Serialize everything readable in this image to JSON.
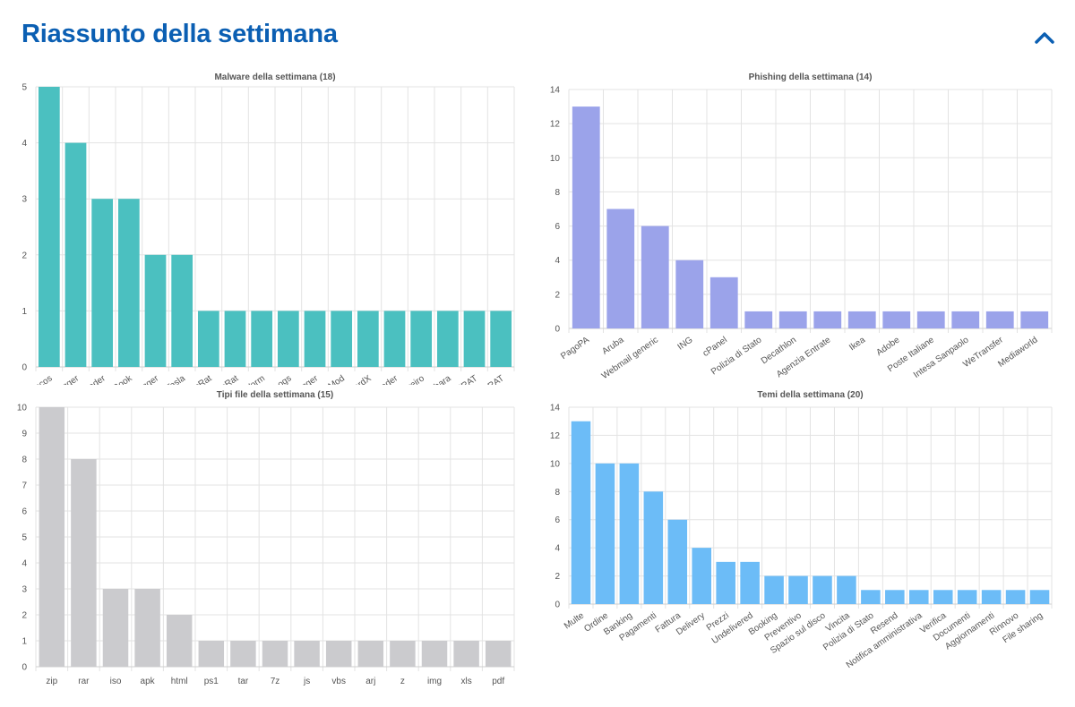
{
  "header": {
    "title": "Riassunto della settimana",
    "toggle_icon": "chevron-up-icon",
    "accent_color": "#0b5fb3"
  },
  "chart_data": [
    {
      "type": "bar",
      "title": "Malware della settimana (18)",
      "categories": [
        "Remcos",
        "VipKeylogger",
        "Modiloader",
        "FormBook",
        "SnakeKeylogger",
        "AgentTesla",
        "AsyncRat",
        "BabylonRat",
        "XWorm",
        "PureLogs",
        "MassLogger",
        "BingoMod",
        "SuperCardX",
        "MintLoader",
        "Grandoreiro",
        "Copybara",
        "njRAT",
        "RevengeRAT"
      ],
      "values": [
        5,
        4,
        3,
        3,
        2,
        2,
        1,
        1,
        1,
        1,
        1,
        1,
        1,
        1,
        1,
        1,
        1,
        1
      ],
      "ylim": [
        0,
        5
      ],
      "yticks": [
        0,
        1,
        2,
        3,
        4,
        5
      ],
      "color": "#4bc0c0",
      "xlabel_rotation": "diagonal",
      "grid": true
    },
    {
      "type": "bar",
      "title": "Phishing della settimana (14)",
      "categories": [
        "PagoPA",
        "Aruba",
        "Webmail generic",
        "ING",
        "cPanel",
        "Polizia di Stato",
        "Decathlon",
        "Agenzia Entrate",
        "Ikea",
        "Adobe",
        "Poste Italiane",
        "Intesa Sanpaolo",
        "WeTransfer",
        "Mediaworld"
      ],
      "values": [
        13,
        7,
        6,
        4,
        3,
        1,
        1,
        1,
        1,
        1,
        1,
        1,
        1,
        1
      ],
      "ylim": [
        0,
        14
      ],
      "yticks": [
        0,
        2,
        4,
        6,
        8,
        10,
        12,
        14
      ],
      "color": "#9ba3ea",
      "xlabel_rotation": "diagonal",
      "grid": true
    },
    {
      "type": "bar",
      "title": "Tipi file della settimana (15)",
      "categories": [
        "zip",
        "rar",
        "iso",
        "apk",
        "html",
        "ps1",
        "tar",
        "7z",
        "js",
        "vbs",
        "arj",
        "z",
        "img",
        "xls",
        "pdf"
      ],
      "values": [
        10,
        8,
        3,
        3,
        2,
        1,
        1,
        1,
        1,
        1,
        1,
        1,
        1,
        1,
        1
      ],
      "ylim": [
        0,
        10
      ],
      "yticks": [
        0,
        1,
        2,
        3,
        4,
        5,
        6,
        7,
        8,
        9,
        10
      ],
      "color": "#cbcbce",
      "xlabel_rotation": "horizontal",
      "grid": true
    },
    {
      "type": "bar",
      "title": "Temi della settimana (20)",
      "categories": [
        "Multe",
        "Ordine",
        "Banking",
        "Pagamenti",
        "Fattura",
        "Delivery",
        "Prezzi",
        "Undelivered",
        "Booking",
        "Preventivo",
        "Spazio sul disco",
        "Vincita",
        "Polizia di Stato",
        "Resend",
        "Notifica amministrativa",
        "Verifica",
        "Documenti",
        "Aggiornamenti",
        "Rinnovo",
        "File sharing"
      ],
      "values": [
        13,
        10,
        10,
        8,
        6,
        4,
        3,
        3,
        2,
        2,
        2,
        2,
        1,
        1,
        1,
        1,
        1,
        1,
        1,
        1
      ],
      "ylim": [
        0,
        14
      ],
      "yticks": [
        0,
        2,
        4,
        6,
        8,
        10,
        12,
        14
      ],
      "color": "#6cbcf7",
      "xlabel_rotation": "diagonal",
      "grid": true
    }
  ]
}
